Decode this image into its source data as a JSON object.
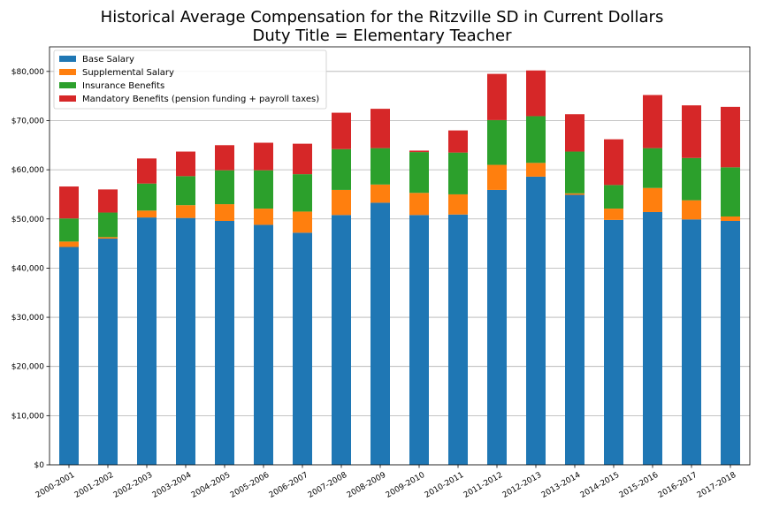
{
  "title_lines": [
    "Historical Average Compensation for the Ritzville SD in Current Dollars",
    "Duty Title = Elementary Teacher"
  ],
  "chart_data": {
    "type": "bar",
    "stacked": true,
    "title": "Historical Average Compensation for the Ritzville SD in Current Dollars\nDuty Title = Elementary Teacher",
    "xlabel": "",
    "ylabel": "",
    "ylim": [
      0,
      85000
    ],
    "yticks": [
      0,
      10000,
      20000,
      30000,
      40000,
      50000,
      60000,
      70000,
      80000
    ],
    "ytick_labels": [
      "$0",
      "$10,000",
      "$20,000",
      "$30,000",
      "$40,000",
      "$50,000",
      "$60,000",
      "$70,000",
      "$80,000"
    ],
    "grid": "horizontal",
    "legend_position": "top-left",
    "categories": [
      "2000-2001",
      "2001-2002",
      "2002-2003",
      "2003-2004",
      "2004-2005",
      "2005-2006",
      "2006-2007",
      "2007-2008",
      "2008-2009",
      "2009-2010",
      "2010-2011",
      "2011-2012",
      "2012-2013",
      "2013-2014",
      "2014-2015",
      "2015-2016",
      "2016-2017",
      "2017-2018"
    ],
    "series": [
      {
        "name": "Base Salary",
        "color": "#1f77b4",
        "values": [
          44300,
          46000,
          50300,
          50200,
          49600,
          48800,
          47200,
          50800,
          53300,
          50800,
          50900,
          55900,
          58600,
          54900,
          49800,
          51400,
          49900,
          49600
        ]
      },
      {
        "name": "Supplemental Salary",
        "color": "#ff7f0e",
        "values": [
          1100,
          300,
          1400,
          2600,
          3400,
          3300,
          4300,
          5100,
          3700,
          4500,
          4100,
          5100,
          2800,
          300,
          2300,
          4900,
          3900,
          900
        ]
      },
      {
        "name": "Insurance Benefits",
        "color": "#2ca02c",
        "values": [
          4700,
          5000,
          5500,
          5900,
          6900,
          7800,
          7600,
          8300,
          7400,
          8300,
          8500,
          9100,
          9500,
          8500,
          4800,
          8100,
          8600,
          10000
        ]
      },
      {
        "name": "Mandatory Benefits (pension funding + payroll taxes)",
        "color": "#d62728",
        "values": [
          6500,
          4700,
          5100,
          5000,
          5100,
          5600,
          6200,
          7400,
          8000,
          300,
          4500,
          9400,
          9300,
          7600,
          9300,
          10800,
          10700,
          12300
        ]
      }
    ]
  }
}
